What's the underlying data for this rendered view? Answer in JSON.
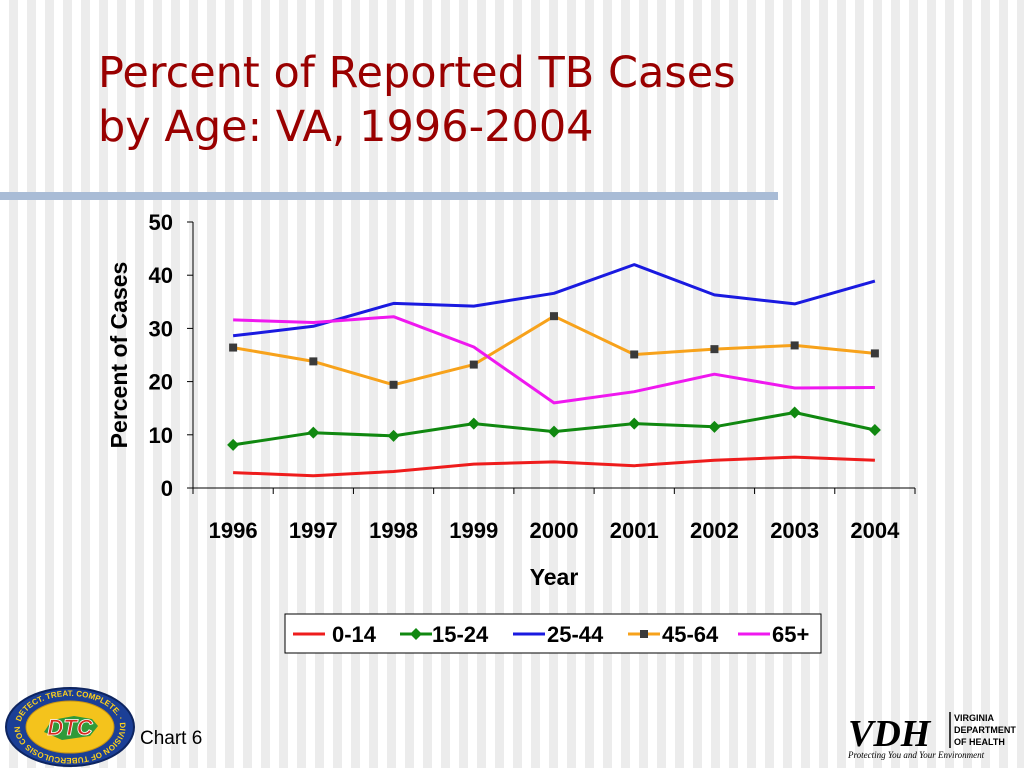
{
  "slide": {
    "title_line1": "Percent of Reported TB Cases",
    "title_line2": "by Age: VA,  1996-2004",
    "footer_label": "Chart 6"
  },
  "logos": {
    "dtc_center_text": "DTC",
    "dtc_ring_text": "DETECT. TREAT. COMPLETE. · DIVISION OF TUBERCULOSIS CONTROL ·",
    "vdh_mark": "VDH",
    "vdh_line1": "VIRGINIA",
    "vdh_line2": "DEPARTMENT",
    "vdh_line3": "OF HEALTH",
    "vdh_tagline": "Protecting You and Your Environment"
  },
  "colors": {
    "title": "#990000",
    "rule": "#a9bcd6",
    "series_0_14": "#ee1c1c",
    "series_15_24": "#108810",
    "series_25_44": "#1a1ae0",
    "series_45_64": "#f7a21b",
    "series_65_plus": "#ef18ef"
  },
  "chart_data": {
    "type": "line",
    "title": "",
    "xlabel": "Year",
    "ylabel": "Percent of Cases",
    "x": [
      "1996",
      "1997",
      "1998",
      "1999",
      "2000",
      "2001",
      "2002",
      "2003",
      "2004"
    ],
    "ylim": [
      0,
      50
    ],
    "yticks": [
      "0",
      "10",
      "20",
      "30",
      "40",
      "50"
    ],
    "grid": false,
    "legend_position": "bottom",
    "series": [
      {
        "name": "0-14",
        "color": "#ee1c1c",
        "marker": "none",
        "values": [
          2.9,
          2.3,
          3.1,
          4.5,
          4.9,
          4.2,
          5.2,
          5.8,
          5.2
        ]
      },
      {
        "name": "15-24",
        "color": "#108810",
        "marker": "diamond",
        "values": [
          8.1,
          10.4,
          9.8,
          12.1,
          10.6,
          12.1,
          11.5,
          14.2,
          10.9
        ]
      },
      {
        "name": "25-44",
        "color": "#1a1ae0",
        "marker": "none",
        "values": [
          28.6,
          30.4,
          34.7,
          34.2,
          36.6,
          42.0,
          36.3,
          34.6,
          38.9
        ]
      },
      {
        "name": "45-64",
        "color": "#f7a21b",
        "marker": "square",
        "values": [
          26.4,
          23.8,
          19.4,
          23.2,
          32.3,
          25.1,
          26.1,
          26.8,
          25.3
        ]
      },
      {
        "name": "65+",
        "color": "#ef18ef",
        "marker": "none",
        "values": [
          31.6,
          31.1,
          32.2,
          26.5,
          16.0,
          18.1,
          21.4,
          18.8,
          18.9
        ]
      }
    ]
  }
}
